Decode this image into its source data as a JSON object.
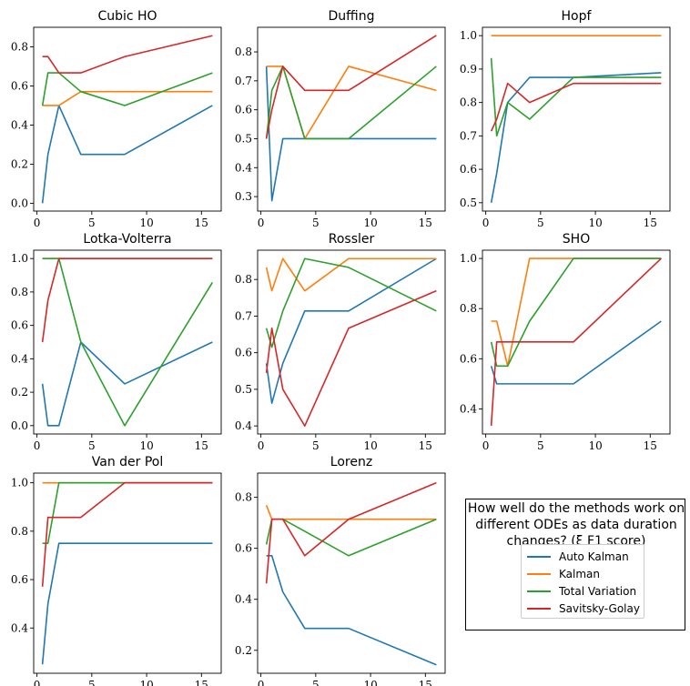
{
  "figure": {
    "info_box_lines": [
      "How well do the methods work on",
      "different ODEs as data duration",
      "changes? (ξ F1 score)"
    ]
  },
  "legend": [
    {
      "name": "Auto Kalman",
      "color": "#1f77b4"
    },
    {
      "name": "Kalman",
      "color": "#ff7f0e"
    },
    {
      "name": "Total Variation",
      "color": "#2ca02c"
    },
    {
      "name": "Savitsky-Golay",
      "color": "#d62728"
    }
  ],
  "chart_data": [
    {
      "type": "line",
      "title": "Cubic HO",
      "x": [
        0.5,
        1,
        2,
        4,
        8,
        16
      ],
      "xlim": [
        -0.3,
        16.8
      ],
      "ylim": [
        -0.04,
        0.9
      ],
      "xticks": [
        0,
        5,
        10,
        15
      ],
      "yticks": [
        0.0,
        0.2,
        0.4,
        0.6,
        0.8
      ],
      "ytick_labels": [
        "0.0",
        "0.2",
        "0.4",
        "0.6",
        "0.8"
      ],
      "series": [
        {
          "name": "Auto Kalman",
          "values": [
            0.0,
            0.25,
            0.5,
            0.25,
            0.25,
            0.5
          ]
        },
        {
          "name": "Kalman",
          "values": [
            0.5,
            0.5,
            0.5,
            0.571,
            0.571,
            0.571
          ]
        },
        {
          "name": "Total Variation",
          "values": [
            0.5,
            0.667,
            0.667,
            0.571,
            0.5,
            0.667
          ]
        },
        {
          "name": "Savitsky-Golay",
          "values": [
            0.75,
            0.75,
            0.667,
            0.667,
            0.75,
            0.857
          ]
        }
      ]
    },
    {
      "type": "line",
      "title": "Duffing",
      "x": [
        0.5,
        1,
        2,
        4,
        8,
        16
      ],
      "xlim": [
        -0.3,
        16.8
      ],
      "ylim": [
        0.25,
        0.885
      ],
      "xticks": [
        0,
        5,
        10,
        15
      ],
      "yticks": [
        0.3,
        0.4,
        0.5,
        0.6,
        0.7,
        0.8
      ],
      "ytick_labels": [
        "0.3",
        "0.4",
        "0.5",
        "0.6",
        "0.7",
        "0.8"
      ],
      "series": [
        {
          "name": "Auto Kalman",
          "values": [
            0.75,
            0.286,
            0.5,
            0.5,
            0.5,
            0.5
          ]
        },
        {
          "name": "Kalman",
          "values": [
            0.75,
            0.75,
            0.75,
            0.5,
            0.75,
            0.667
          ]
        },
        {
          "name": "Total Variation",
          "values": [
            0.5,
            0.667,
            0.75,
            0.5,
            0.5,
            0.75
          ]
        },
        {
          "name": "Savitsky-Golay",
          "values": [
            0.5,
            0.6,
            0.75,
            0.667,
            0.667,
            0.857
          ]
        }
      ]
    },
    {
      "type": "line",
      "title": "Hopf",
      "x": [
        0.5,
        1,
        2,
        4,
        8,
        16
      ],
      "xlim": [
        -0.3,
        16.8
      ],
      "ylim": [
        0.475,
        1.025
      ],
      "xticks": [
        0,
        5,
        10,
        15
      ],
      "yticks": [
        0.5,
        0.6,
        0.7,
        0.8,
        0.9,
        1.0
      ],
      "ytick_labels": [
        "0.5",
        "0.6",
        "0.7",
        "0.8",
        "0.9",
        "1.0"
      ],
      "series": [
        {
          "name": "Auto Kalman",
          "values": [
            0.5,
            0.588,
            0.8,
            0.875,
            0.875,
            0.889
          ]
        },
        {
          "name": "Kalman",
          "values": [
            1.0,
            1.0,
            1.0,
            1.0,
            1.0,
            1.0
          ]
        },
        {
          "name": "Total Variation",
          "values": [
            0.933,
            0.7,
            0.8,
            0.75,
            0.875,
            0.875
          ]
        },
        {
          "name": "Savitsky-Golay",
          "values": [
            0.714,
            0.75,
            0.857,
            0.8,
            0.857,
            0.857
          ]
        }
      ]
    },
    {
      "type": "line",
      "title": "Lotka-Volterra",
      "x": [
        0.5,
        1,
        2,
        4,
        8,
        16
      ],
      "xlim": [
        -0.3,
        16.8
      ],
      "ylim": [
        -0.05,
        1.05
      ],
      "xticks": [
        0,
        5,
        10,
        15
      ],
      "yticks": [
        0.0,
        0.2,
        0.4,
        0.6,
        0.8,
        1.0
      ],
      "ytick_labels": [
        "0.0",
        "0.2",
        "0.4",
        "0.6",
        "0.8",
        "1.0"
      ],
      "series": [
        {
          "name": "Auto Kalman",
          "values": [
            0.25,
            0.0,
            0.0,
            0.5,
            0.25,
            0.5
          ]
        },
        {
          "name": "Kalman",
          "values": [
            1.0,
            1.0,
            1.0,
            1.0,
            1.0,
            1.0
          ]
        },
        {
          "name": "Total Variation",
          "values": [
            1.0,
            1.0,
            1.0,
            0.5,
            0.0,
            0.857
          ]
        },
        {
          "name": "Savitsky-Golay",
          "values": [
            0.5,
            0.75,
            1.0,
            1.0,
            1.0,
            1.0
          ]
        }
      ]
    },
    {
      "type": "line",
      "title": "Rossler",
      "x": [
        0.5,
        1,
        2,
        4,
        8,
        16
      ],
      "xlim": [
        -0.3,
        16.8
      ],
      "ylim": [
        0.378,
        0.88
      ],
      "xticks": [
        0,
        5,
        10,
        15
      ],
      "yticks": [
        0.4,
        0.5,
        0.6,
        0.7,
        0.8
      ],
      "ytick_labels": [
        "0.4",
        "0.5",
        "0.6",
        "0.7",
        "0.8"
      ],
      "series": [
        {
          "name": "Auto Kalman",
          "values": [
            0.571,
            0.462,
            0.571,
            0.714,
            0.714,
            0.857
          ]
        },
        {
          "name": "Kalman",
          "values": [
            0.833,
            0.769,
            0.857,
            0.769,
            0.857,
            0.857
          ]
        },
        {
          "name": "Total Variation",
          "values": [
            0.667,
            0.615,
            0.714,
            0.857,
            0.833,
            0.714
          ]
        },
        {
          "name": "Savitsky-Golay",
          "values": [
            0.545,
            0.667,
            0.5,
            0.4,
            0.667,
            0.769
          ]
        }
      ]
    },
    {
      "type": "line",
      "title": "SHO",
      "x": [
        0.5,
        1,
        2,
        4,
        8,
        16
      ],
      "xlim": [
        -0.3,
        16.8
      ],
      "ylim": [
        0.3,
        1.033
      ],
      "xticks": [
        0,
        5,
        10,
        15
      ],
      "yticks": [
        0.4,
        0.6,
        0.8,
        1.0
      ],
      "ytick_labels": [
        "0.4",
        "0.6",
        "0.8",
        "1.0"
      ],
      "series": [
        {
          "name": "Auto Kalman",
          "values": [
            0.571,
            0.5,
            0.5,
            0.5,
            0.5,
            0.75
          ]
        },
        {
          "name": "Kalman",
          "values": [
            0.75,
            0.75,
            0.571,
            1.0,
            1.0,
            1.0
          ]
        },
        {
          "name": "Total Variation",
          "values": [
            0.667,
            0.571,
            0.571,
            0.75,
            1.0,
            1.0
          ]
        },
        {
          "name": "Savitsky-Golay",
          "values": [
            0.333,
            0.667,
            0.667,
            0.667,
            0.667,
            1.0
          ]
        }
      ]
    },
    {
      "type": "line",
      "title": "Van der Pol",
      "x": [
        0.5,
        1,
        2,
        4,
        8,
        16
      ],
      "xlim": [
        -0.3,
        16.8
      ],
      "ylim": [
        0.213,
        1.04
      ],
      "xticks": [
        0,
        5,
        10,
        15
      ],
      "yticks": [
        0.4,
        0.6,
        0.8,
        1.0
      ],
      "ytick_labels": [
        "0.4",
        "0.6",
        "0.8",
        "1.0"
      ],
      "series": [
        {
          "name": "Auto Kalman",
          "values": [
            0.25,
            0.5,
            0.75,
            0.75,
            0.75,
            0.75
          ]
        },
        {
          "name": "Kalman",
          "values": [
            1.0,
            1.0,
            1.0,
            1.0,
            1.0,
            1.0
          ]
        },
        {
          "name": "Total Variation",
          "values": [
            0.75,
            0.75,
            1.0,
            1.0,
            1.0,
            1.0
          ]
        },
        {
          "name": "Savitsky-Golay",
          "values": [
            0.571,
            0.857,
            0.857,
            0.857,
            1.0,
            1.0
          ]
        }
      ]
    },
    {
      "type": "line",
      "title": "Lorenz",
      "x": [
        0.5,
        1,
        2,
        4,
        8,
        16
      ],
      "xlim": [
        -0.3,
        16.8
      ],
      "ylim": [
        0.11,
        0.895
      ],
      "xticks": [
        0,
        5,
        10,
        15
      ],
      "yticks": [
        0.2,
        0.4,
        0.6,
        0.8
      ],
      "ytick_labels": [
        "0.2",
        "0.4",
        "0.6",
        "0.8"
      ],
      "series": [
        {
          "name": "Auto Kalman",
          "values": [
            0.571,
            0.571,
            0.429,
            0.286,
            0.286,
            0.143
          ]
        },
        {
          "name": "Kalman",
          "values": [
            0.769,
            0.714,
            0.714,
            0.714,
            0.714,
            0.714
          ]
        },
        {
          "name": "Total Variation",
          "values": [
            0.615,
            0.714,
            0.714,
            0.667,
            0.571,
            0.714
          ]
        },
        {
          "name": "Savitsky-Golay",
          "values": [
            0.462,
            0.714,
            0.714,
            0.571,
            0.714,
            0.857
          ]
        }
      ]
    }
  ]
}
